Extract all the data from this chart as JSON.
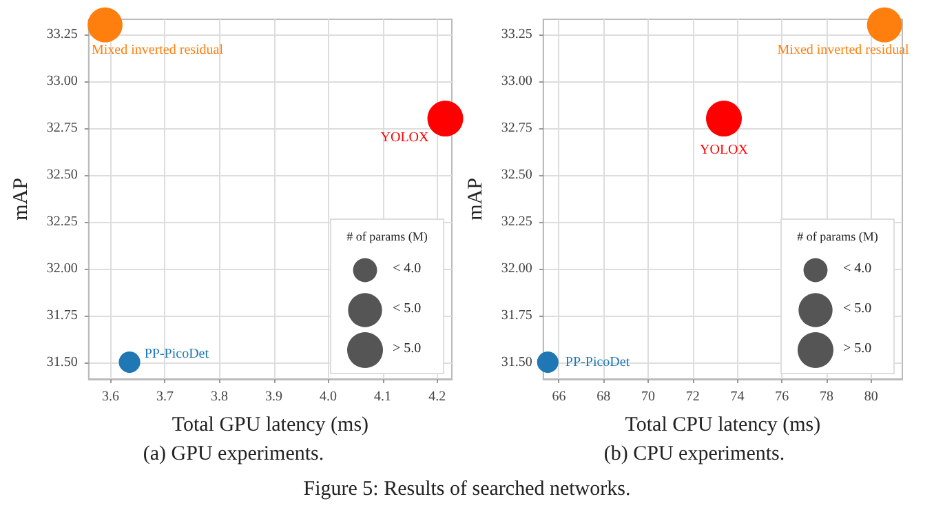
{
  "chart_data": [
    {
      "type": "bubble",
      "title": "(a) GPU experiments.",
      "xlabel": "Total GPU latency (ms)",
      "ylabel": "mAP",
      "legend_title": "# of params (M)",
      "xlim": [
        3.56,
        4.227
      ],
      "xticks": [
        3.6,
        3.7,
        3.8,
        3.9,
        {
          "value": 4,
          "label": "4.0"
        },
        4.1,
        4.2
      ],
      "ylim": [
        31.41,
        33.33
      ],
      "yticks": [
        {
          "value": 31.5,
          "label": "31.50"
        },
        31.75,
        {
          "value": 32,
          "label": "32.00"
        },
        32.25,
        {
          "value": 32.5,
          "label": "32.50"
        },
        32.75,
        {
          "value": 33,
          "label": "33.00"
        },
        33.25
      ],
      "series": [
        {
          "name": "Mixed inverted residual",
          "color": "#ff7f0e",
          "x": [
            3.59
          ],
          "values": [
            33.3
          ],
          "sizes": [
            0.95
          ]
        },
        {
          "name": "YOLOX",
          "color": "#ff0000",
          "x": [
            4.215
          ],
          "values": [
            32.8
          ],
          "sizes": [
            1
          ]
        },
        {
          "name": "PP-PicoDet",
          "color": "#1f77b4",
          "x": [
            3.635
          ],
          "values": [
            31.5
          ],
          "sizes": [
            0.36
          ]
        }
      ],
      "size_legend": [
        {
          "value": 0.45,
          "label": "< 4.0"
        },
        {
          "value": 0.9,
          "label": "< 5.0"
        },
        {
          "value": 1,
          "label": "> 5.0"
        }
      ],
      "grid": true,
      "legend": "bottom right",
      "marker": "circle"
    },
    {
      "type": "bubble",
      "title": "(b) CPU experiments.",
      "xlabel": "Total CPU latency (ms)",
      "ylabel": "mAP",
      "legend_title": "# of params (M)",
      "xlim": [
        65.3,
        81.4
      ],
      "xticks": [
        66,
        68,
        70,
        72,
        74,
        76,
        78,
        80
      ],
      "ylim": [
        31.41,
        33.33
      ],
      "yticks": [
        {
          "value": 31.5,
          "label": "31.50"
        },
        31.75,
        {
          "value": 32,
          "label": "32.00"
        },
        32.25,
        {
          "value": 32.5,
          "label": "32.50"
        },
        32.75,
        {
          "value": 33,
          "label": "33.00"
        },
        33.25
      ],
      "series": [
        {
          "name": "Mixed inverted residual",
          "color": "#ff7f0e",
          "x": [
            80.6
          ],
          "values": [
            33.3
          ],
          "sizes": [
            0.95
          ]
        },
        {
          "name": "YOLOX",
          "color": "#ff0000",
          "x": [
            73.4
          ],
          "values": [
            32.8
          ],
          "sizes": [
            1
          ]
        },
        {
          "name": "PP-PicoDet",
          "color": "#1f77b4",
          "x": [
            65.5
          ],
          "values": [
            31.5
          ],
          "sizes": [
            0.36
          ]
        }
      ],
      "size_legend": [
        {
          "value": 0.45,
          "label": "< 4.0"
        },
        {
          "value": 0.9,
          "label": "< 5.0"
        },
        {
          "value": 1,
          "label": "> 5.0"
        }
      ],
      "grid": true,
      "legend": "bottom right",
      "marker": "circle",
      "annotations": [
        "Figure 5: Results of searched networks."
      ]
    }
  ]
}
